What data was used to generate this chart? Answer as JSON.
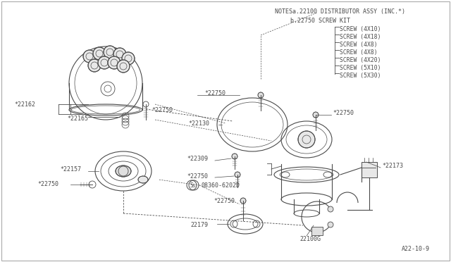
{
  "bg_color": "#ffffff",
  "line_color": "#4a4a4a",
  "notes_line1": "NOTESa.22100 DISTRIBUTOR ASSY (INC.*)",
  "notes_line2": "b.22750 SCREW KIT",
  "screw_list": [
    "SCREW (4X10)",
    "SCREW (4X18)",
    "SCREW (4X8)",
    "SCREW (4X8)",
    "SCREW (4X20)",
    "SCREW (5X10)",
    "SCREW (5X30)"
  ],
  "diagram_number": "A22-10-9"
}
